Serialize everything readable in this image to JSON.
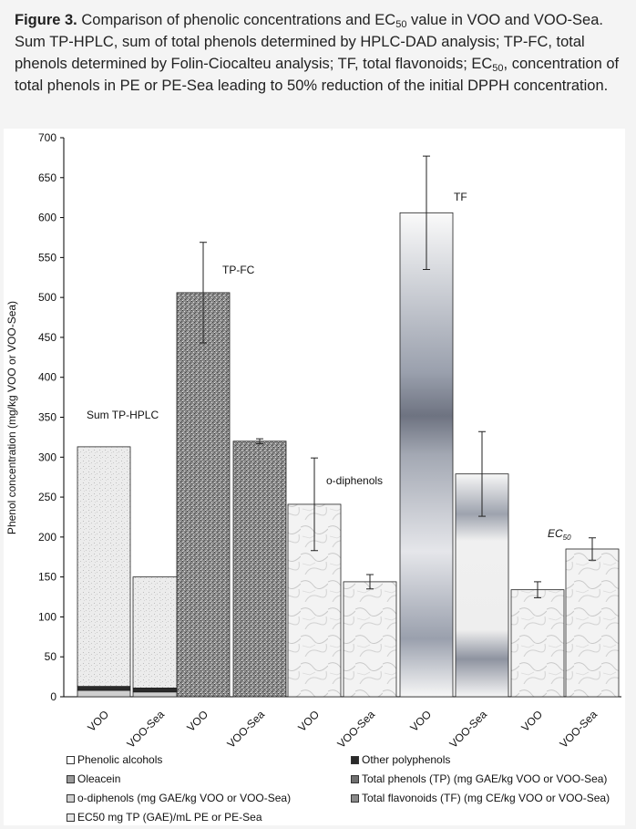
{
  "caption": {
    "figure_label": "Figure 3.",
    "line1_pre": " Comparison of phenolic concentrations and EC",
    "line1_sub": "50",
    "line1_post": " value in VOO and VOO-Sea.",
    "line2": "Sum TP-HPLC, sum of total phenols determined by HPLC-DAD analysis; TP-FC, total phenols determined by Folin-Ciocalteu analysis; TF, total flavonoids; EC",
    "line2_sub": "50",
    "line3": ", concentration of total phenols in PE or PE-Sea leading to 50% reduction of the initial DPPH concentration."
  },
  "chart_data": {
    "type": "bar",
    "ylabel": "Phenol concentration (mg/kg VOO or VOO-Sea)",
    "ylim": [
      0,
      700
    ],
    "yticks": [
      0,
      50,
      100,
      150,
      200,
      250,
      300,
      350,
      400,
      450,
      500,
      550,
      600,
      650,
      700
    ],
    "categories": [
      "VOO",
      "VOO-Sea",
      "VOO",
      "VOO-Sea",
      "VOO",
      "VOO-Sea",
      "VOO",
      "VOO-Sea",
      "VOO",
      "VOO-Sea"
    ],
    "groups": [
      {
        "label": "Sum TP-HPLC",
        "bars": [
          {
            "category": "VOO",
            "stack": [
              {
                "series": "Phenolic alcohols",
                "value": 8
              },
              {
                "series": "Other polyphenols",
                "value": 5
              },
              {
                "series": "Oleacein",
                "value": 300
              }
            ],
            "total": 313
          },
          {
            "category": "VOO-Sea",
            "stack": [
              {
                "series": "Phenolic alcohols",
                "value": 6
              },
              {
                "series": "Other polyphenols",
                "value": 5
              },
              {
                "series": "Oleacein",
                "value": 139
              }
            ],
            "total": 150
          }
        ]
      },
      {
        "label": "TP-FC",
        "bars": [
          {
            "category": "VOO",
            "series": "Total phenols (TP)",
            "value": 506,
            "error": 63
          },
          {
            "category": "VOO-Sea",
            "series": "Total phenols (TP)",
            "value": 320,
            "error": 3
          }
        ]
      },
      {
        "label": "o-diphenols",
        "bars": [
          {
            "category": "VOO",
            "series": "o-diphenols",
            "value": 241,
            "error": 58
          },
          {
            "category": "VOO-Sea",
            "series": "o-diphenols",
            "value": 144,
            "error": 9
          }
        ]
      },
      {
        "label": "TF",
        "bars": [
          {
            "category": "VOO",
            "series": "Total flavonoids (TF)",
            "value": 606,
            "error": 71
          },
          {
            "category": "VOO-Sea",
            "series": "Total flavonoids (TF)",
            "value": 279,
            "error": 53
          }
        ]
      },
      {
        "label_main": "EC",
        "label_sub": "50",
        "bars": [
          {
            "category": "VOO",
            "series": "EC50",
            "value": 134,
            "error": 10
          },
          {
            "category": "VOO-Sea",
            "series": "EC50",
            "value": 185,
            "error": 14
          }
        ]
      }
    ],
    "legend": [
      {
        "label": "Phenolic alcohols",
        "swatch": "#ffffff"
      },
      {
        "label": "Other polyphenols",
        "swatch": "#2a2a2a"
      },
      {
        "label": "Oleacein",
        "swatch": "#9a9a9a"
      },
      {
        "label": "Total phenols (TP)  (mg GAE/kg VOO or VOO-Sea)",
        "swatch": "#707070"
      },
      {
        "label": "o-diphenols (mg GAE/kg VOO or VOO-Sea)",
        "swatch": "#d0d0d0"
      },
      {
        "label": "Total flavonoids (TF)  (mg CE/kg VOO or VOO-Sea)",
        "swatch": "#8a8a8a"
      },
      {
        "label": "EC50 mg TP (GAE)/mL PE or PE-Sea",
        "swatch": "#e6e6e6"
      }
    ],
    "legend_placement": "bottom",
    "grid": false
  }
}
